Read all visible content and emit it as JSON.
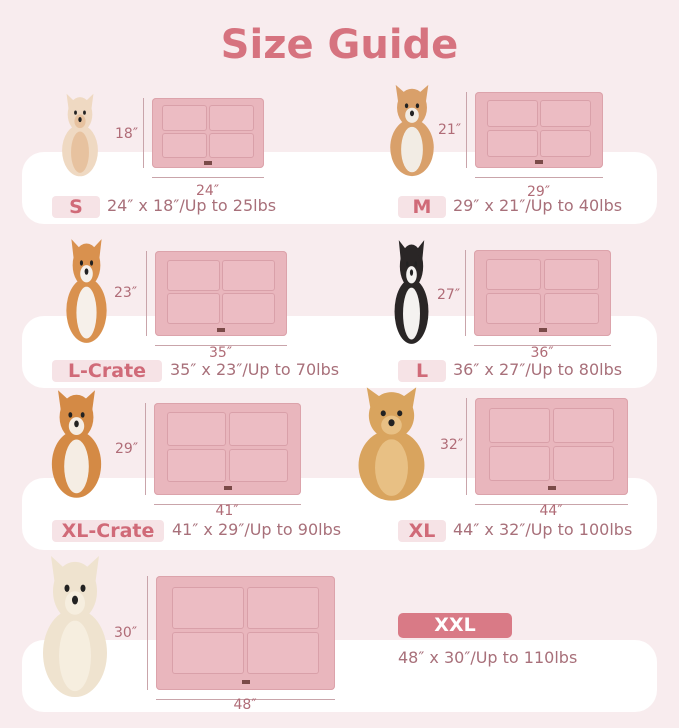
{
  "title": "Size Guide",
  "colors": {
    "accent": "#d6737f",
    "background": "#f8ecee",
    "mat": "#e9b6bd"
  },
  "sizes": [
    {
      "badge": "S",
      "spec": "24″ x 18″/Up to 25lbs",
      "width_label": "24″",
      "height_label": "18″",
      "dog_icon": "chihuahua"
    },
    {
      "badge": "M",
      "spec": "29″ x 21″/Up to 40lbs",
      "width_label": "29″",
      "height_label": "21″",
      "dog_icon": "doodle-puppy"
    },
    {
      "badge": "L-Crate",
      "spec": "35″ x 23″/Up to 70lbs",
      "width_label": "35″",
      "height_label": "23″",
      "dog_icon": "corgi"
    },
    {
      "badge": "L",
      "spec": "36″ x 27″/Up to 80lbs",
      "width_label": "36″",
      "height_label": "27″",
      "dog_icon": "border-collie"
    },
    {
      "badge": "XL-Crate",
      "spec": "41″ x 29″/Up to 90lbs",
      "width_label": "41″",
      "height_label": "29″",
      "dog_icon": "shiba-inu"
    },
    {
      "badge": "XL",
      "spec": "44″ x 32″/Up to 100lbs",
      "width_label": "44″",
      "height_label": "32″",
      "dog_icon": "golden-retriever"
    },
    {
      "badge": "XXL",
      "spec": "48″ x 30″/Up to 110lbs",
      "width_label": "48″",
      "height_label": "30″",
      "dog_icon": "golden-retriever-adult"
    }
  ]
}
